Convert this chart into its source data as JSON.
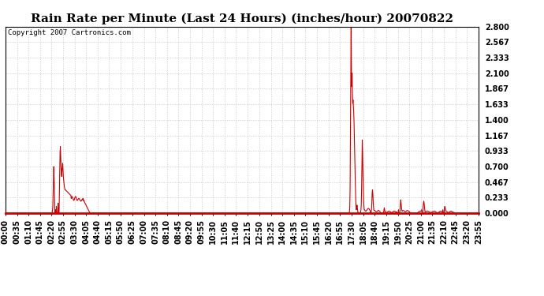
{
  "title": "Rain Rate per Minute (Last 24 Hours) (inches/hour) 20070822",
  "copyright_text": "Copyright 2007 Cartronics.com",
  "background_color": "#ffffff",
  "plot_bg_color": "#ffffff",
  "line_color": "#cc0000",
  "grid_color": "#c8c8c8",
  "ylim": [
    0.0,
    2.8
  ],
  "yticks": [
    0.0,
    0.233,
    0.467,
    0.7,
    0.933,
    1.167,
    1.4,
    1.633,
    1.867,
    2.1,
    2.333,
    2.567,
    2.8
  ],
  "xlabel_rotation": 90,
  "title_fontsize": 11,
  "tick_fontsize": 7,
  "copy_fontsize": 6.5,
  "total_minutes": 1440,
  "x_tick_labels": [
    "00:00",
    "00:35",
    "01:10",
    "01:45",
    "02:20",
    "02:55",
    "03:30",
    "04:05",
    "04:40",
    "05:15",
    "05:50",
    "06:25",
    "07:00",
    "07:35",
    "08:10",
    "08:45",
    "09:20",
    "09:55",
    "10:30",
    "11:05",
    "11:40",
    "12:15",
    "12:50",
    "13:25",
    "14:00",
    "14:35",
    "15:10",
    "15:45",
    "16:20",
    "16:55",
    "17:30",
    "18:05",
    "18:40",
    "19:15",
    "19:50",
    "20:25",
    "21:00",
    "21:35",
    "22:10",
    "22:45",
    "23:20",
    "23:55"
  ]
}
